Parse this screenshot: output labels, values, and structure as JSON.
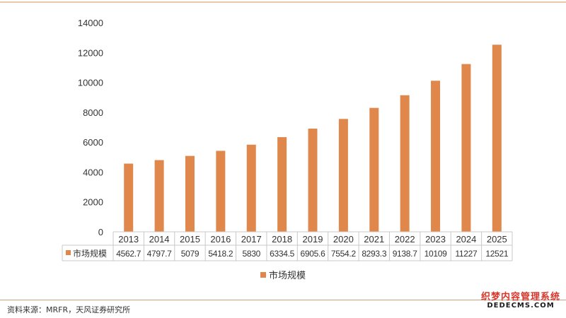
{
  "chart_data": {
    "type": "bar",
    "categories": [
      "2013",
      "2014",
      "2015",
      "2016",
      "2017",
      "2018",
      "2019",
      "2020",
      "2021",
      "2022",
      "2023",
      "2024",
      "2025"
    ],
    "series": [
      {
        "name": "市场规模",
        "values": [
          4562.7,
          4797.7,
          5079,
          5418.2,
          5830,
          6334.5,
          6905.6,
          7554.2,
          8293.3,
          9138.7,
          10109,
          11227,
          12521
        ],
        "value_labels": [
          "4562.7",
          "4797.7",
          "5079",
          "5418.2",
          "5830",
          "6334.5",
          "6905.6",
          "7554.2",
          "8293.3",
          "9138.7",
          "10109",
          "11227",
          "12521"
        ]
      }
    ],
    "ylim": [
      0,
      14000
    ],
    "yticks": [
      0,
      2000,
      4000,
      6000,
      8000,
      10000,
      12000,
      14000
    ],
    "grid": false,
    "legend_position": "bottom-center",
    "has_data_table": true,
    "colors": {
      "bar": "#e0884c",
      "table_border": "#c8c8c8",
      "axis": "#d0d0d0"
    }
  },
  "footer": {
    "source": "资料来源：MRFR，天风证券研究所"
  },
  "watermark": {
    "line1": "织梦内容管理系统",
    "line2": "DEDECMS.COM"
  }
}
